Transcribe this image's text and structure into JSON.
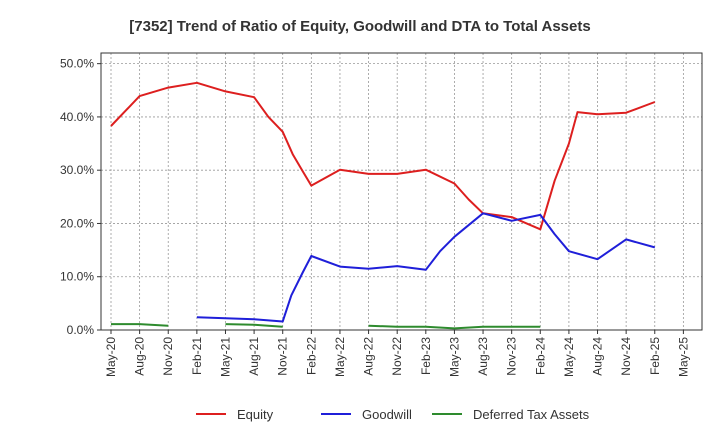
{
  "chart_data": {
    "type": "line",
    "title": "[7352]  Trend of Ratio of Equity, Goodwill and DTA to Total Assets",
    "xlabel": "",
    "ylabel": "",
    "ylim": [
      0,
      52
    ],
    "y_ticks": [
      "0.0%",
      "10.0%",
      "20.0%",
      "30.0%",
      "40.0%",
      "50.0%"
    ],
    "y_tick_values": [
      0,
      10,
      20,
      30,
      40,
      50
    ],
    "x_tick_labels": [
      "May-20",
      "Aug-20",
      "Nov-20",
      "Feb-21",
      "May-21",
      "Aug-21",
      "Nov-21",
      "Feb-22",
      "May-22",
      "Aug-22",
      "Nov-22",
      "Feb-23",
      "May-23",
      "Aug-23",
      "Nov-23",
      "Feb-24",
      "May-24",
      "Aug-24",
      "Nov-24",
      "Feb-25",
      "May-25"
    ],
    "grid": true,
    "legend_position": "bottom",
    "series": [
      {
        "name": "Equity",
        "color": "#dd1f1f",
        "points": [
          [
            0,
            38.3
          ],
          [
            1,
            43.9
          ],
          [
            2,
            45.5
          ],
          [
            3,
            46.4
          ],
          [
            4,
            44.8
          ],
          [
            5,
            43.7
          ],
          [
            5.5,
            40.0
          ],
          [
            6,
            37.2
          ],
          [
            6.35,
            33.0
          ],
          [
            6.7,
            29.8
          ],
          [
            7,
            27.1
          ],
          [
            8,
            30.1
          ],
          [
            9,
            29.3
          ],
          [
            10,
            29.3
          ],
          [
            11,
            30.1
          ],
          [
            12,
            27.5
          ],
          [
            12.5,
            24.5
          ],
          [
            13,
            21.9
          ],
          [
            14,
            21.2
          ],
          [
            15,
            18.9
          ],
          [
            15.5,
            28.0
          ],
          [
            16,
            35.0
          ],
          [
            16.3,
            40.9
          ],
          [
            17,
            40.5
          ],
          [
            18,
            40.8
          ],
          [
            19,
            42.8
          ]
        ]
      },
      {
        "name": "Goodwill",
        "color": "#1f1fd9",
        "points": [
          [
            3,
            2.4
          ],
          [
            4,
            2.2
          ],
          [
            5,
            2.0
          ],
          [
            6,
            1.6
          ],
          [
            6.3,
            6.5
          ],
          [
            6.7,
            10.8
          ],
          [
            7,
            13.9
          ],
          [
            8,
            11.9
          ],
          [
            9,
            11.5
          ],
          [
            10,
            12.0
          ],
          [
            11,
            11.3
          ],
          [
            11.5,
            14.8
          ],
          [
            12,
            17.5
          ],
          [
            13,
            21.9
          ],
          [
            14,
            20.5
          ],
          [
            15,
            21.6
          ],
          [
            15.5,
            18.0
          ],
          [
            16,
            14.8
          ],
          [
            17,
            13.3
          ],
          [
            18,
            17.0
          ],
          [
            19,
            15.5
          ]
        ]
      },
      {
        "name": "Deferred Tax Assets",
        "color": "#2e8b2e",
        "points_segments": [
          [
            [
              0,
              1.1
            ],
            [
              1,
              1.1
            ],
            [
              2,
              0.8
            ]
          ],
          [
            [
              4,
              1.1
            ],
            [
              5,
              1.0
            ],
            [
              6,
              0.6
            ]
          ],
          [
            [
              9,
              0.8
            ],
            [
              10,
              0.6
            ],
            [
              11,
              0.6
            ],
            [
              12,
              0.3
            ],
            [
              13,
              0.6
            ],
            [
              14,
              0.6
            ],
            [
              15,
              0.6
            ]
          ]
        ]
      }
    ]
  }
}
